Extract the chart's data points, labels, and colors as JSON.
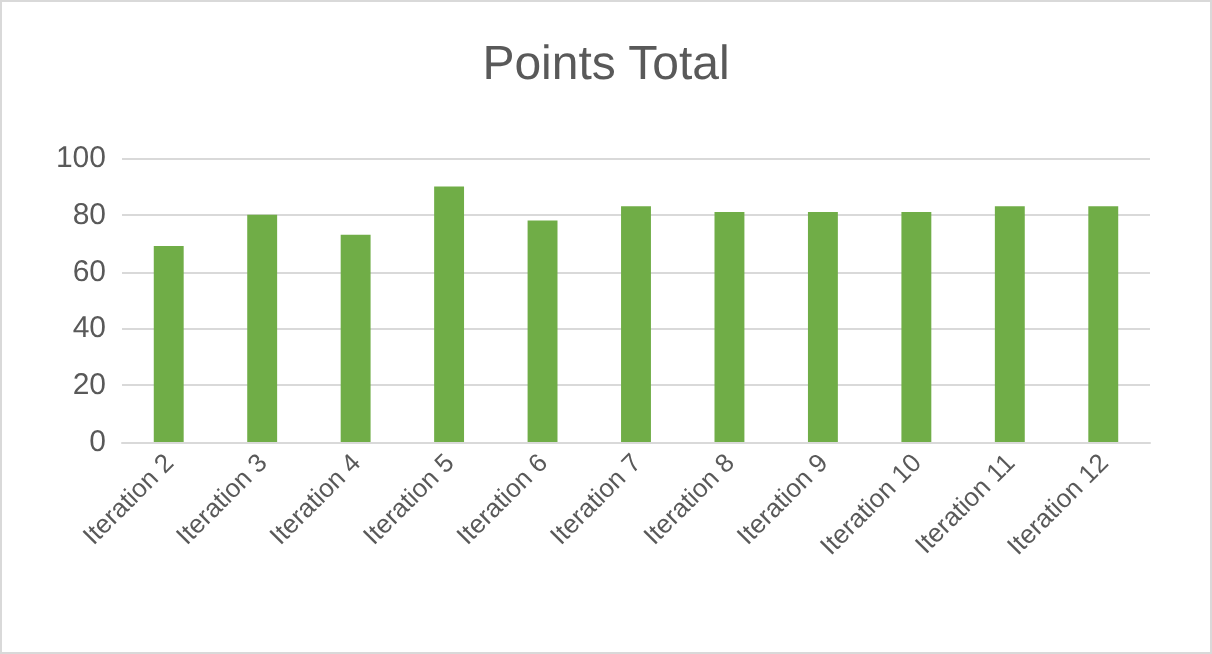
{
  "chart_data": {
    "type": "bar",
    "title": "Points Total",
    "categories": [
      "Iteration 2",
      "Iteration 3",
      "Iteration 4",
      "Iteration 5",
      "Iteration 6",
      "Iteration 7",
      "Iteration 8",
      "Iteration 9",
      "Iteration 10",
      "Iteration 11",
      "Iteration 12"
    ],
    "values": [
      69,
      80,
      73,
      90,
      78,
      83,
      81,
      81,
      81,
      83,
      83
    ],
    "color": "#70ad47",
    "ylim": [
      0,
      100
    ],
    "yticks": [
      0,
      20,
      40,
      60,
      80,
      100
    ],
    "grid": "y"
  }
}
